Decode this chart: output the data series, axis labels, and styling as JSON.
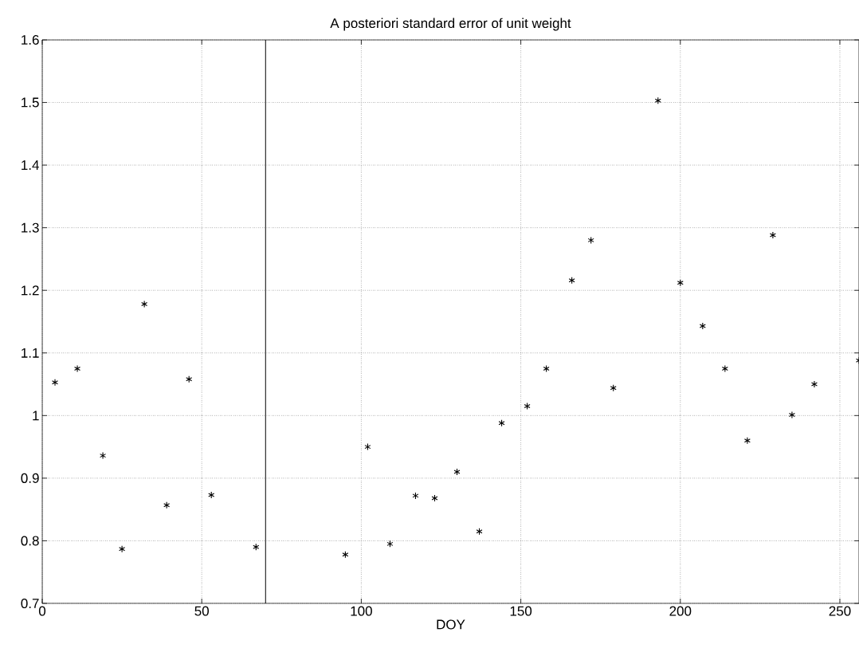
{
  "chart_data": {
    "type": "scatter",
    "title": "A posteriori standard error of unit weight",
    "xlabel": "DOY",
    "x": [
      4,
      11,
      19,
      25,
      32,
      39,
      46,
      53,
      67,
      95,
      102,
      109,
      117,
      123,
      130,
      137,
      144,
      152,
      158,
      166,
      172,
      179,
      193,
      200,
      207,
      214,
      221,
      229,
      235,
      242,
      256
    ],
    "values": [
      1.053,
      1.075,
      0.936,
      0.787,
      1.178,
      0.857,
      1.058,
      0.873,
      0.79,
      0.778,
      0.95,
      0.795,
      0.872,
      0.868,
      0.91,
      0.815,
      0.988,
      1.015,
      1.075,
      1.216,
      1.28,
      1.044,
      1.503,
      1.212,
      1.143,
      1.075,
      0.96,
      1.288,
      1.001,
      1.05,
      1.088
    ],
    "color": "#000000",
    "marker": "cross",
    "xlim": [
      0,
      256
    ],
    "ylim": [
      0.7,
      1.6
    ],
    "xticks": [
      0,
      50,
      100,
      150,
      200,
      250
    ],
    "yticks": [
      0.7,
      0.8,
      0.9,
      1,
      1.1,
      1.2,
      1.3,
      1.4,
      1.5,
      1.6
    ],
    "grid": true,
    "ref_lines": [
      {
        "axis": "x",
        "value": 70,
        "color": "#000000",
        "line_style": "solid"
      }
    ]
  }
}
